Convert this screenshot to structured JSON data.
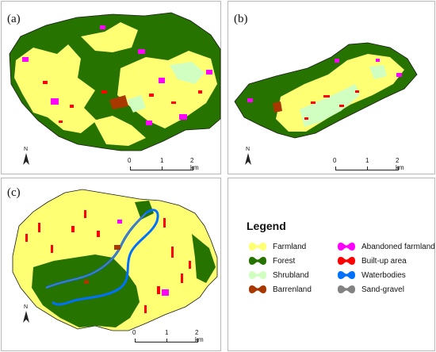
{
  "panels": {
    "a": {
      "label": "(a)"
    },
    "b": {
      "label": "(b)"
    },
    "c": {
      "label": "(c)"
    }
  },
  "north_label": "N",
  "scale": {
    "t0": "0",
    "t1": "1",
    "t2": "2 km"
  },
  "legend": {
    "title": "Legend",
    "items": [
      {
        "label": "Farmland",
        "color": "#ffff73",
        "icon": "farmland-swatch"
      },
      {
        "label": "Forest",
        "color": "#267300",
        "icon": "forest-swatch"
      },
      {
        "label": "Shrubland",
        "color": "#d1ffc2",
        "icon": "shrubland-swatch"
      },
      {
        "label": "Barrenland",
        "color": "#a83800",
        "icon": "barrenland-swatch"
      },
      {
        "label": "Abandoned farmland",
        "color": "#ff00ff",
        "icon": "abandoned-farmland-swatch"
      },
      {
        "label": "Built-up area",
        "color": "#ff0000",
        "icon": "built-up-area-swatch"
      },
      {
        "label": "Waterbodies",
        "color": "#0070ff",
        "icon": "waterbodies-swatch"
      },
      {
        "label": "Sand-gravel",
        "color": "#828282",
        "icon": "sand-gravel-swatch"
      }
    ]
  }
}
